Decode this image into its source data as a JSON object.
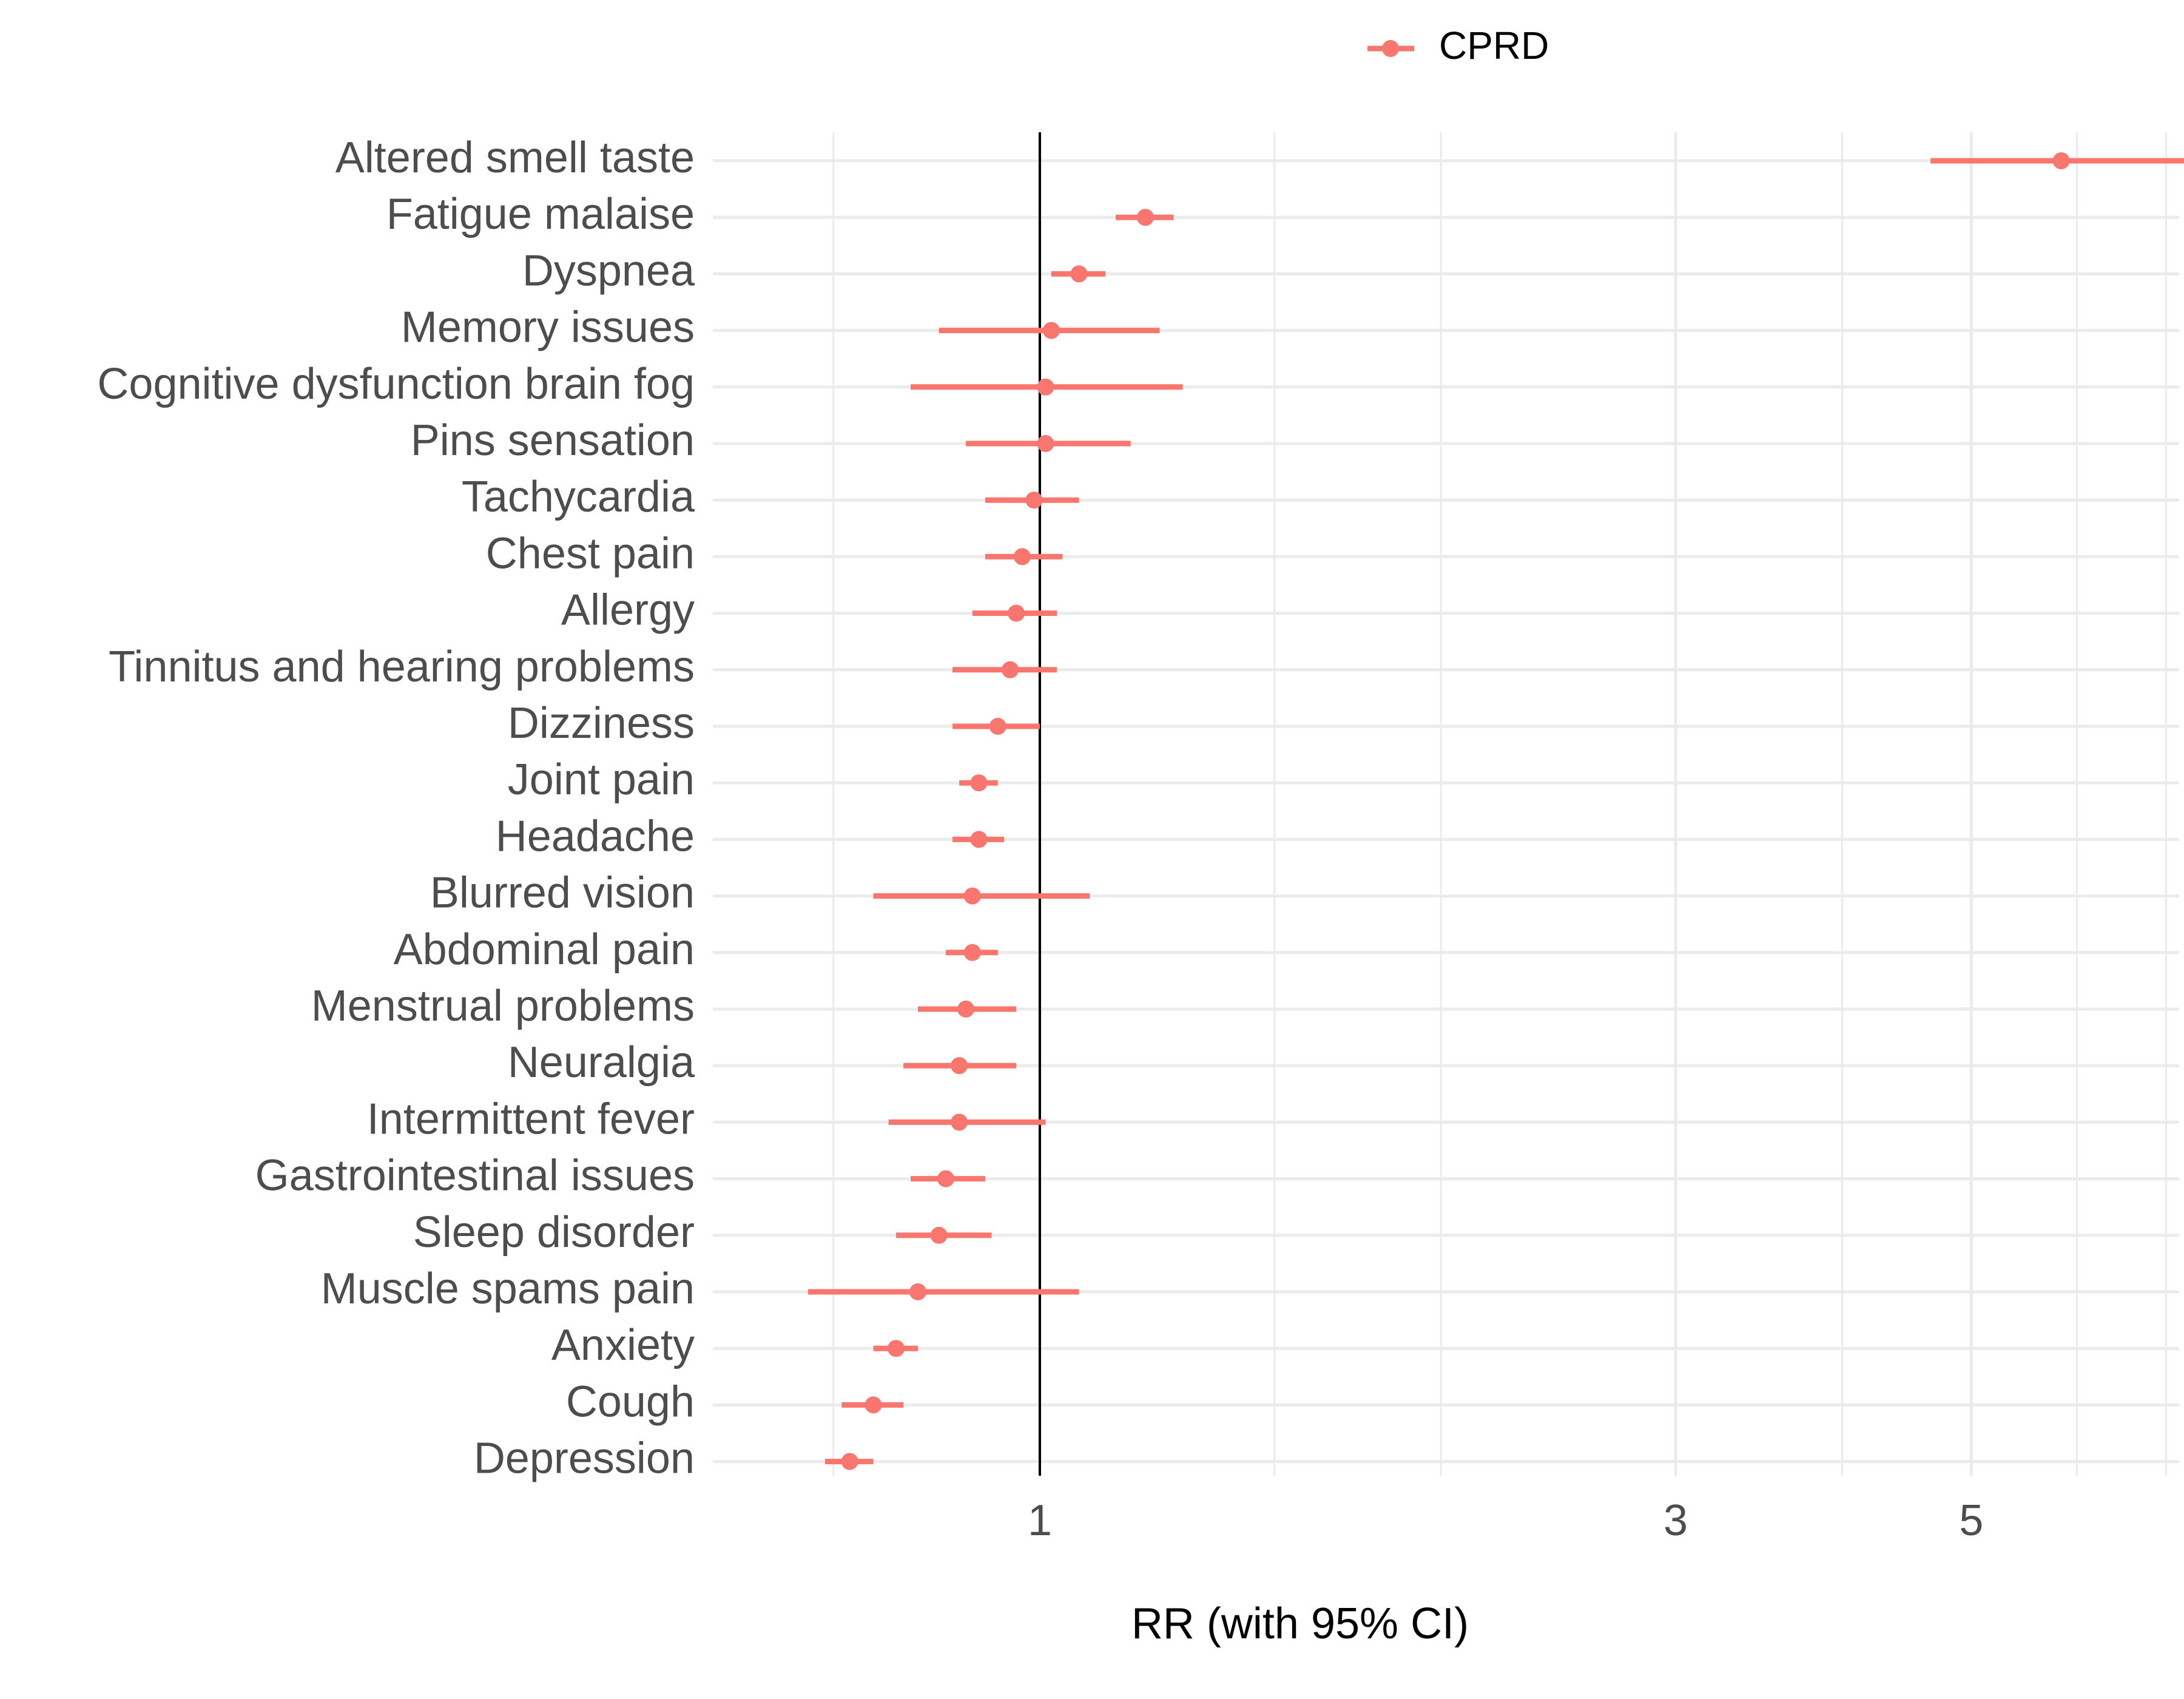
{
  "chart_data": {
    "type": "forest",
    "xlabel": "RR (with 95% CI)",
    "x_scale": "log",
    "xlim": [
      0.7,
      7.6
    ],
    "x_ticks": [
      1,
      3,
      5
    ],
    "x_tick_labels": [
      "1",
      "3",
      "5"
    ],
    "x_minor_gridlines": [
      0.7,
      1.5,
      2,
      4,
      6,
      7
    ],
    "reference_line": 1,
    "grid": true,
    "legend": {
      "position": "top",
      "entries": [
        "CPRD"
      ]
    },
    "colors": {
      "series": "#f8766d",
      "grid": "#ebebeb",
      "reference": "#000000"
    },
    "series": [
      {
        "name": "CPRD",
        "points": [
          {
            "label": "Altered smell taste",
            "rr": 5.84,
            "lower": 4.66,
            "upper": 7.61
          },
          {
            "label": "Fatigue malaise",
            "rr": 1.2,
            "lower": 1.14,
            "upper": 1.26
          },
          {
            "label": "Dyspnea",
            "rr": 1.07,
            "lower": 1.02,
            "upper": 1.12
          },
          {
            "label": "Memory issues",
            "rr": 1.02,
            "lower": 0.84,
            "upper": 1.23
          },
          {
            "label": "Cognitive dysfunction brain fog",
            "rr": 1.01,
            "lower": 0.8,
            "upper": 1.28
          },
          {
            "label": "Pins sensation",
            "rr": 1.01,
            "lower": 0.88,
            "upper": 1.17
          },
          {
            "label": "Tachycardia",
            "rr": 0.99,
            "lower": 0.91,
            "upper": 1.07
          },
          {
            "label": "Chest pain",
            "rr": 0.97,
            "lower": 0.91,
            "upper": 1.04
          },
          {
            "label": "Allergy",
            "rr": 0.96,
            "lower": 0.89,
            "upper": 1.03
          },
          {
            "label": "Tinnitus and hearing problems",
            "rr": 0.95,
            "lower": 0.86,
            "upper": 1.03
          },
          {
            "label": "Dizziness",
            "rr": 0.93,
            "lower": 0.86,
            "upper": 1.0
          },
          {
            "label": "Joint pain",
            "rr": 0.9,
            "lower": 0.87,
            "upper": 0.93
          },
          {
            "label": "Headache",
            "rr": 0.9,
            "lower": 0.86,
            "upper": 0.94
          },
          {
            "label": "Blurred vision",
            "rr": 0.89,
            "lower": 0.75,
            "upper": 1.09
          },
          {
            "label": "Abdominal pain",
            "rr": 0.89,
            "lower": 0.85,
            "upper": 0.93
          },
          {
            "label": "Menstrual problems",
            "rr": 0.88,
            "lower": 0.81,
            "upper": 0.96
          },
          {
            "label": "Neuralgia",
            "rr": 0.87,
            "lower": 0.79,
            "upper": 0.96
          },
          {
            "label": "Intermittent fever",
            "rr": 0.87,
            "lower": 0.77,
            "upper": 1.01
          },
          {
            "label": "Gastrointestinal issues",
            "rr": 0.85,
            "lower": 0.8,
            "upper": 0.91
          },
          {
            "label": "Sleep disorder",
            "rr": 0.84,
            "lower": 0.78,
            "upper": 0.92
          },
          {
            "label": "Muscle spams pain",
            "rr": 0.81,
            "lower": 0.67,
            "upper": 1.07
          },
          {
            "label": "Anxiety",
            "rr": 0.78,
            "lower": 0.75,
            "upper": 0.81
          },
          {
            "label": "Cough",
            "rr": 0.75,
            "lower": 0.71,
            "upper": 0.79
          },
          {
            "label": "Depression",
            "rr": 0.72,
            "lower": 0.69,
            "upper": 0.75
          }
        ]
      }
    ]
  }
}
